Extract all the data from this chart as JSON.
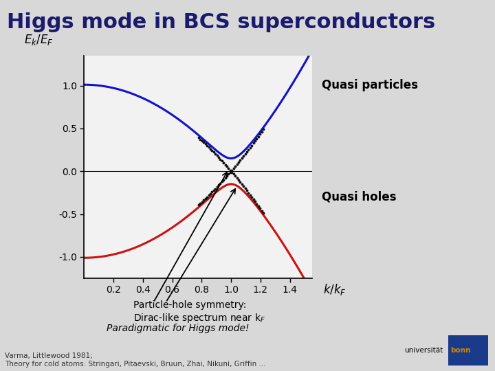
{
  "title": "Higgs mode in BCS superconductors",
  "title_bg": "#c0c0c0",
  "title_color": "#1a1a6e",
  "title_fontsize": 22,
  "bg_color": "#d8d8d8",
  "plot_bg": "#f2f2f2",
  "xlim": [
    0.0,
    1.55
  ],
  "ylim": [
    -1.25,
    1.35
  ],
  "xticks": [
    0.2,
    0.4,
    0.6,
    0.8,
    1.0,
    1.2,
    1.4
  ],
  "yticks": [
    -1.0,
    -0.5,
    0.0,
    0.5,
    1.0
  ],
  "ytick_labels": [
    "-1.0",
    "-0.5",
    "0.0",
    "0.5",
    "1.0"
  ],
  "Delta": 0.15,
  "kF": 1.0,
  "quasi_particle_color": "#1111cc",
  "quasi_hole_color": "#cc1111",
  "dot_color": "#111111",
  "quasi_particle_label": "Quasi particles",
  "quasi_hole_label": "Quasi holes",
  "annotation_line1": "Particle-hole symmetry:",
  "annotation_line2": "Dirac-like spectrum near k",
  "paradigm_text": "Paradigmatic for Higgs mode!",
  "ref_text": "Varma, Littlewood 1981;\nTheory for cold atoms: Stringari, Pitaevski, Bruun, Zhai, Nikuni, Griffin ...",
  "line_width": 2.2,
  "dot_k_min": 0.78,
  "dot_k_max": 1.22,
  "dot_n": 40
}
